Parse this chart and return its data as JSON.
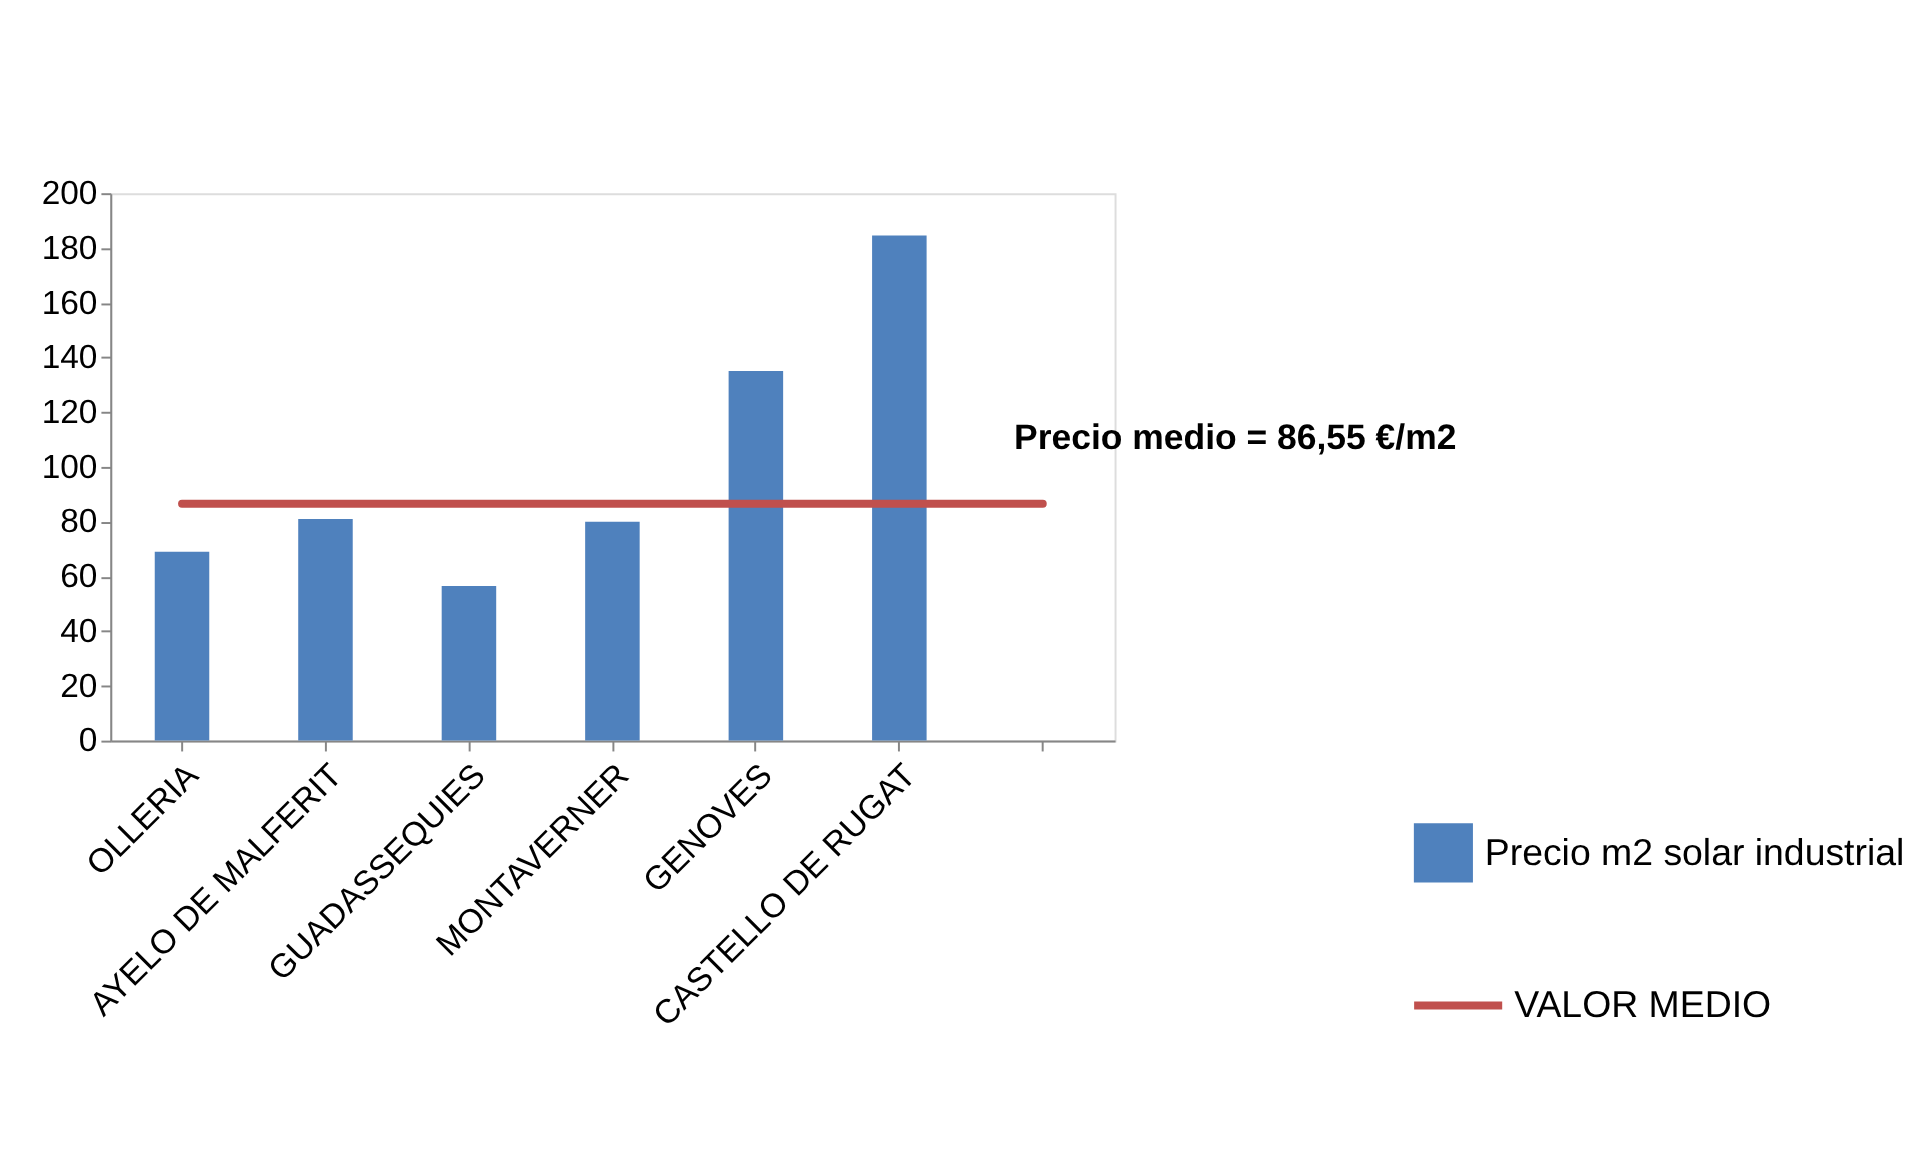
{
  "chart_data": {
    "type": "bar",
    "categories": [
      "OLLERIA",
      "AYELO DE MALFERIT",
      "GUADASSEQUIES",
      "MONTAVERNER",
      "GENOVES",
      "CASTELLO DE RUGAT",
      null
    ],
    "series": [
      {
        "name": "Precio m2 solar industrial",
        "color": "#4f81bd",
        "values": [
          69,
          81,
          56.5,
          80,
          135,
          184.5,
          null
        ]
      },
      {
        "name": "VALOR MEDIO",
        "type": "line",
        "color": "#c0504d",
        "values": [
          86.55,
          86.55,
          86.55,
          86.55,
          86.55,
          86.55,
          86.55
        ]
      }
    ],
    "annotations": [
      "Precio medio = 86,55 €/m2"
    ],
    "ylim": [
      0,
      200
    ],
    "yticks": [
      0,
      20,
      40,
      60,
      80,
      100,
      120,
      140,
      160,
      180,
      200
    ],
    "grid": false,
    "legend": "right"
  }
}
